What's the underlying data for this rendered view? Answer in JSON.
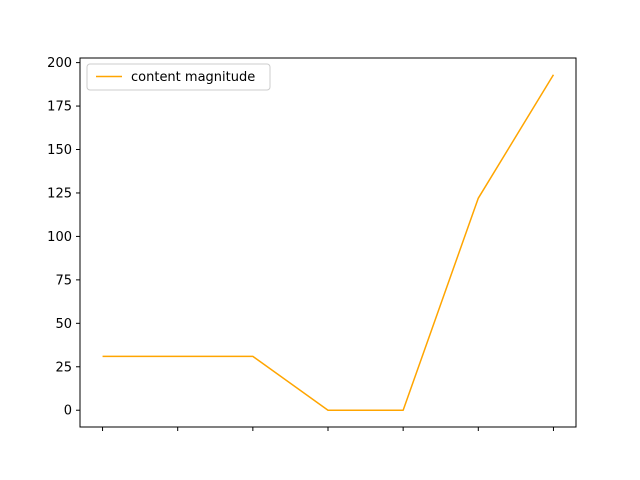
{
  "chart_data": {
    "type": "line",
    "x": [
      0,
      1,
      2,
      3,
      4,
      5,
      6
    ],
    "series": [
      {
        "name": "content magnitude",
        "color": "#ffa500",
        "values": [
          31,
          31,
          31,
          0,
          0,
          122,
          193
        ]
      }
    ],
    "ylim": [
      -9.65,
      202.65
    ],
    "xlim": [
      -0.3,
      6.3
    ],
    "yticks": [
      0,
      25,
      50,
      75,
      100,
      125,
      150,
      175,
      200
    ],
    "yticklabels": [
      "0",
      "25",
      "50",
      "75",
      "100",
      "125",
      "150",
      "175",
      "200"
    ],
    "xticklabels": [],
    "grid": false,
    "legend_position": "upper-left"
  }
}
